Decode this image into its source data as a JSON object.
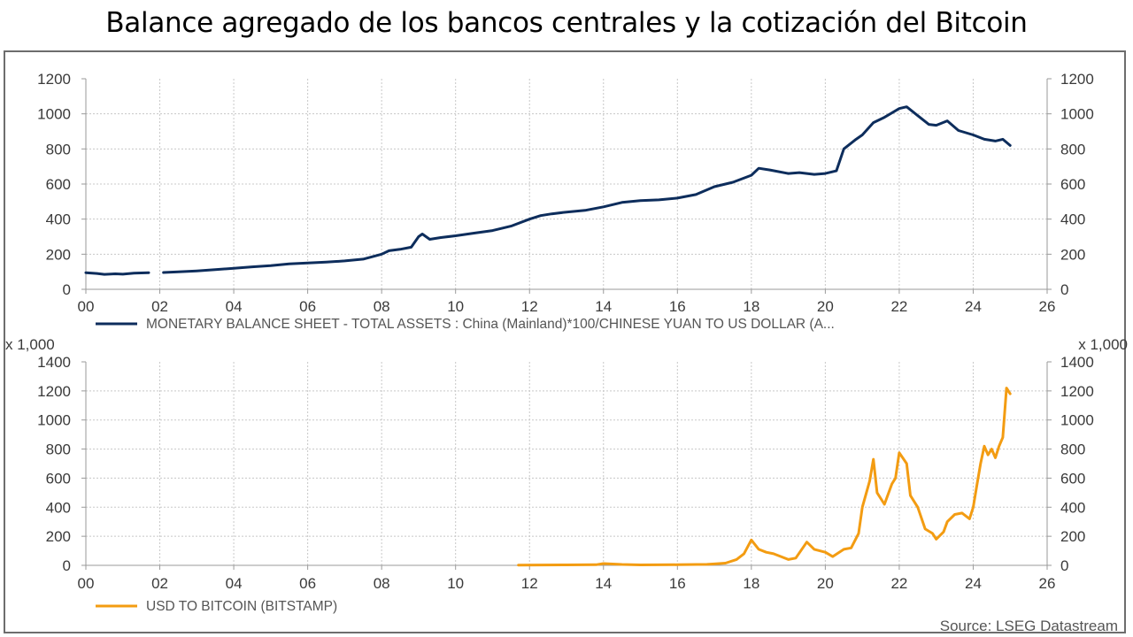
{
  "title": "Balance agregado de los bancos centrales y la cotización del Bitcoin",
  "source": "Source: LSEG Datastream",
  "colors": {
    "top_series": "#0d2d5c",
    "bottom_series": "#f39c12",
    "grid": "#c8c8c8",
    "axis": "#9a9a9a"
  },
  "chart_data": [
    {
      "type": "line",
      "legend_position": "bottom-left",
      "grid": true,
      "xlim": [
        2000,
        2026
      ],
      "ylim": [
        0,
        1200
      ],
      "xticks": [
        "00",
        "02",
        "04",
        "06",
        "08",
        "10",
        "12",
        "14",
        "16",
        "18",
        "20",
        "22",
        "24",
        "26"
      ],
      "yticks": [
        "0",
        "200",
        "400",
        "600",
        "800",
        "1000",
        "1200"
      ],
      "series": [
        {
          "name": "MONETARY BALANCE SHEET - TOTAL ASSETS : China (Mainland)*100/CHINESE YUAN TO US DOLLAR (A...",
          "color": "#0d2d5c",
          "segments": [
            [
              [
                2000,
                95
              ],
              [
                2000.3,
                90
              ],
              [
                2000.5,
                85
              ],
              [
                2000.8,
                88
              ],
              [
                2001,
                86
              ],
              [
                2001.3,
                92
              ],
              [
                2001.7,
                95
              ]
            ],
            [
              [
                2002.1,
                96
              ],
              [
                2002.5,
                100
              ],
              [
                2003,
                105
              ],
              [
                2003.5,
                112
              ],
              [
                2004,
                120
              ],
              [
                2004.5,
                128
              ],
              [
                2005,
                135
              ],
              [
                2005.5,
                145
              ],
              [
                2006,
                150
              ],
              [
                2006.5,
                155
              ],
              [
                2007,
                162
              ],
              [
                2007.5,
                172
              ],
              [
                2008,
                200
              ],
              [
                2008.2,
                220
              ],
              [
                2008.5,
                228
              ],
              [
                2008.8,
                240
              ],
              [
                2009,
                300
              ],
              [
                2009.1,
                315
              ],
              [
                2009.3,
                285
              ],
              [
                2009.6,
                295
              ],
              [
                2010,
                305
              ],
              [
                2010.5,
                320
              ],
              [
                2011,
                335
              ],
              [
                2011.5,
                360
              ],
              [
                2012,
                400
              ],
              [
                2012.3,
                420
              ],
              [
                2012.6,
                430
              ],
              [
                2013,
                440
              ],
              [
                2013.5,
                450
              ],
              [
                2014,
                470
              ],
              [
                2014.5,
                495
              ],
              [
                2015,
                505
              ],
              [
                2015.5,
                510
              ],
              [
                2016,
                520
              ],
              [
                2016.5,
                540
              ],
              [
                2017,
                585
              ],
              [
                2017.5,
                610
              ],
              [
                2018,
                650
              ],
              [
                2018.2,
                690
              ],
              [
                2018.5,
                680
              ],
              [
                2019,
                660
              ],
              [
                2019.3,
                665
              ],
              [
                2019.7,
                655
              ],
              [
                2020,
                660
              ],
              [
                2020.3,
                675
              ],
              [
                2020.5,
                800
              ],
              [
                2020.8,
                850
              ],
              [
                2021,
                880
              ],
              [
                2021.3,
                950
              ],
              [
                2021.6,
                980
              ],
              [
                2022,
                1030
              ],
              [
                2022.2,
                1040
              ],
              [
                2022.5,
                990
              ],
              [
                2022.8,
                940
              ],
              [
                2023,
                935
              ],
              [
                2023.3,
                960
              ],
              [
                2023.6,
                905
              ],
              [
                2024,
                880
              ],
              [
                2024.3,
                855
              ],
              [
                2024.6,
                845
              ],
              [
                2024.8,
                855
              ],
              [
                2025,
                820
              ]
            ]
          ]
        }
      ]
    },
    {
      "type": "line",
      "legend_position": "bottom-left",
      "grid": true,
      "xlim": [
        2000,
        2026
      ],
      "ylim": [
        0,
        1400
      ],
      "y_multiplier_label": "x 1,000",
      "xticks": [
        "00",
        "02",
        "04",
        "06",
        "08",
        "10",
        "12",
        "14",
        "16",
        "18",
        "20",
        "22",
        "24",
        "26"
      ],
      "yticks": [
        "0",
        "200",
        "400",
        "600",
        "800",
        "1000",
        "1200",
        "1400"
      ],
      "series": [
        {
          "name": "USD TO BITCOIN (BITSTAMP)",
          "color": "#f39c12",
          "segments": [
            [
              [
                2011.7,
                2
              ],
              [
                2013,
                3
              ],
              [
                2013.8,
                4
              ],
              [
                2014,
                12
              ],
              [
                2014.5,
                6
              ],
              [
                2015,
                3
              ],
              [
                2016,
                4
              ],
              [
                2016.8,
                7
              ],
              [
                2017,
                10
              ],
              [
                2017.3,
                15
              ],
              [
                2017.6,
                40
              ],
              [
                2017.8,
                80
              ],
              [
                2018,
                175
              ],
              [
                2018.2,
                110
              ],
              [
                2018.4,
                90
              ],
              [
                2018.6,
                80
              ],
              [
                2018.8,
                60
              ],
              [
                2019,
                40
              ],
              [
                2019.2,
                50
              ],
              [
                2019.5,
                160
              ],
              [
                2019.7,
                110
              ],
              [
                2020,
                90
              ],
              [
                2020.2,
                60
              ],
              [
                2020.5,
                110
              ],
              [
                2020.7,
                120
              ],
              [
                2020.9,
                220
              ],
              [
                2021,
                400
              ],
              [
                2021.2,
                580
              ],
              [
                2021.3,
                730
              ],
              [
                2021.4,
                500
              ],
              [
                2021.6,
                420
              ],
              [
                2021.8,
                560
              ],
              [
                2021.9,
                600
              ],
              [
                2022,
                775
              ],
              [
                2022.2,
                700
              ],
              [
                2022.3,
                480
              ],
              [
                2022.5,
                400
              ],
              [
                2022.7,
                250
              ],
              [
                2022.9,
                220
              ],
              [
                2023,
                180
              ],
              [
                2023.2,
                230
              ],
              [
                2023.3,
                300
              ],
              [
                2023.5,
                350
              ],
              [
                2023.7,
                360
              ],
              [
                2023.9,
                320
              ],
              [
                2024,
                400
              ],
              [
                2024.1,
                550
              ],
              [
                2024.2,
                700
              ],
              [
                2024.3,
                820
              ],
              [
                2024.4,
                760
              ],
              [
                2024.5,
                800
              ],
              [
                2024.6,
                740
              ],
              [
                2024.7,
                820
              ],
              [
                2024.8,
                880
              ],
              [
                2024.9,
                1220
              ],
              [
                2025,
                1180
              ]
            ]
          ]
        }
      ]
    }
  ]
}
